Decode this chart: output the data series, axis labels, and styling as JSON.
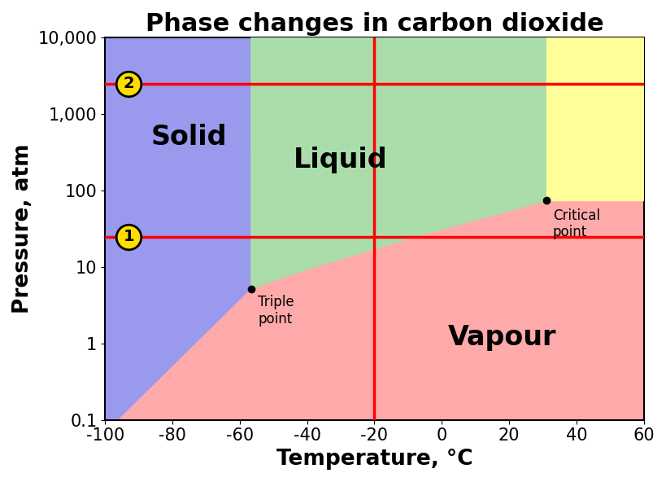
{
  "title": "Phase changes in carbon dioxide",
  "xlabel": "Temperature, °C",
  "ylabel": "Pressure, atm",
  "xlim": [
    -100,
    60
  ],
  "ylim_log": [
    0.1,
    10000
  ],
  "triple_point_T": -56.6,
  "triple_point_P": 5.11,
  "critical_point_T": 31.0,
  "critical_point_P": 73.8,
  "red_vline_x": -20,
  "red_hline1_y": 25,
  "red_hline2_y": 2500,
  "color_solid": "#9999ee",
  "color_liquid": "#aaddaa",
  "color_vapour": "#ffaaaa",
  "color_supercritical": "#ffff99",
  "title_fontsize": 22,
  "region_label_fontsize": 24,
  "axis_label_fontsize": 19,
  "tick_fontsize": 15,
  "point_label_fontsize": 12
}
